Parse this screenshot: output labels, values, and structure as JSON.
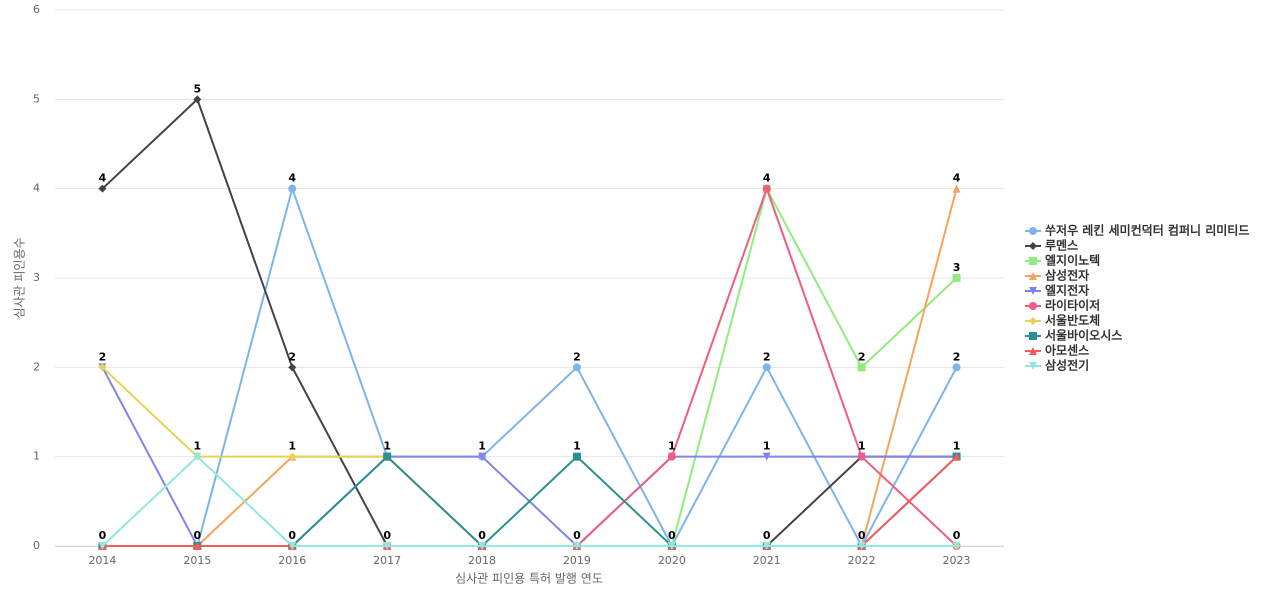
{
  "chart_data": {
    "type": "line",
    "x_label": "심사관 피인용 특허 발행 연도",
    "y_label": "심사관 피인용수",
    "categories": [
      "2014",
      "2015",
      "2016",
      "2017",
      "2018",
      "2019",
      "2020",
      "2021",
      "2022",
      "2023"
    ],
    "ylim": [
      0,
      6
    ],
    "yticks": [
      0,
      1,
      2,
      3,
      4,
      5,
      6
    ],
    "grid": true,
    "legend": "right",
    "series": [
      {
        "name": "쑤저우 레킨 세미컨덕터 컴퍼니 리미티드",
        "color": "#7cb5ec",
        "marker": "circle",
        "values": [
          0,
          0,
          4,
          1,
          1,
          2,
          0,
          2,
          0,
          2
        ]
      },
      {
        "name": "루멘스",
        "color": "#434348",
        "marker": "diamond",
        "values": [
          4,
          5,
          2,
          0,
          0,
          0,
          0,
          0,
          1,
          1
        ]
      },
      {
        "name": "엘지이노텍",
        "color": "#90ed7d",
        "marker": "square",
        "values": [
          0,
          0,
          0,
          0,
          0,
          0,
          0,
          4,
          2,
          3
        ]
      },
      {
        "name": "삼성전자",
        "color": "#f7a35c",
        "marker": "triangle",
        "values": [
          0,
          0,
          1,
          1,
          0,
          0,
          0,
          0,
          0,
          4
        ]
      },
      {
        "name": "엘지전자",
        "color": "#8085e9",
        "marker": "triangle-down",
        "values": [
          2,
          0,
          0,
          1,
          1,
          0,
          1,
          1,
          1,
          1
        ]
      },
      {
        "name": "라이타이저",
        "color": "#f15c80",
        "marker": "circle",
        "values": [
          0,
          0,
          0,
          0,
          0,
          0,
          1,
          4,
          1,
          0
        ]
      },
      {
        "name": "서울반도체",
        "color": "#e4d354",
        "marker": "diamond",
        "values": [
          2,
          1,
          1,
          1,
          0,
          0,
          0,
          0,
          0,
          0
        ]
      },
      {
        "name": "서울바이오시스",
        "color": "#2b908f",
        "marker": "square",
        "values": [
          0,
          0,
          0,
          1,
          0,
          1,
          0,
          0,
          0,
          1
        ]
      },
      {
        "name": "아모센스",
        "color": "#f45b5b",
        "marker": "triangle",
        "values": [
          0,
          0,
          0,
          0,
          0,
          0,
          0,
          0,
          0,
          1
        ]
      },
      {
        "name": "삼성전기",
        "color": "#91e8e1",
        "marker": "triangle-down",
        "values": [
          0,
          1,
          0,
          0,
          0,
          0,
          0,
          0,
          0,
          0
        ]
      }
    ]
  }
}
